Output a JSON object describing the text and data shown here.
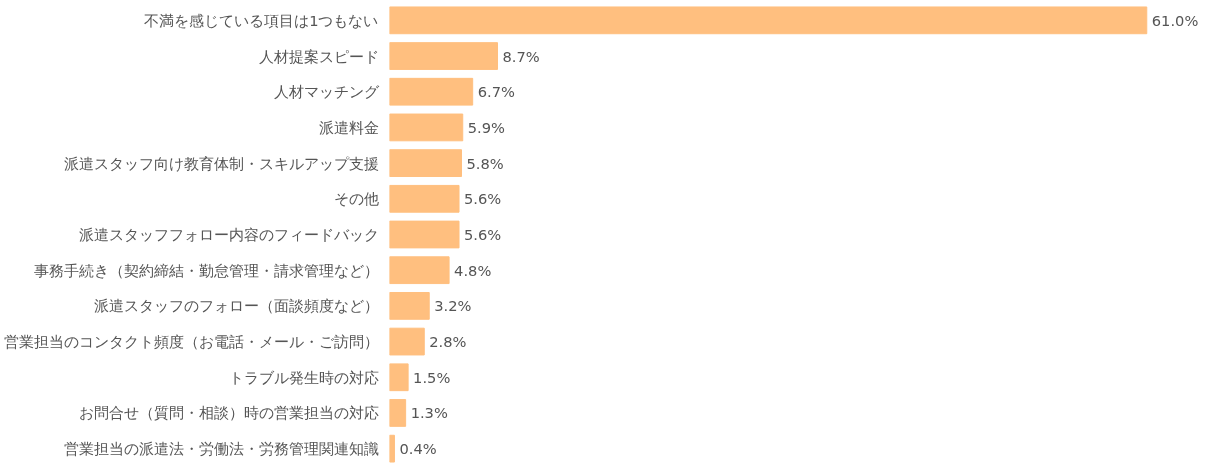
{
  "chart_data": {
    "type": "bar",
    "orientation": "horizontal",
    "categories": [
      "不満を感じている項目は1つもない",
      "人材提案スピード",
      "人材マッチング",
      "派遣料金",
      "派遣スタッフ向け教育体制・スキルアップ支援",
      "その他",
      "派遣スタッフフォロー内容のフィードバック",
      "事務手続き（契約締結・勤怠管理・請求管理など）",
      "派遣スタッフのフォロー（面談頻度など）",
      "営業担当のコンタクト頻度（お電話・メール・ご訪問）",
      "トラブル発生時の対応",
      "お問合せ（質問・相談）時の営業担当の対応",
      "営業担当の派遣法・労働法・労務管理関連知識"
    ],
    "values": [
      61.0,
      8.7,
      6.7,
      5.9,
      5.8,
      5.6,
      5.6,
      4.8,
      3.2,
      2.8,
      1.5,
      1.3,
      0.4
    ],
    "value_labels": [
      "61.0%",
      "8.7%",
      "6.7%",
      "5.9%",
      "5.8%",
      "5.6%",
      "5.6%",
      "4.8%",
      "3.2%",
      "2.8%",
      "1.5%",
      "1.3%",
      "0.4%"
    ],
    "color": "#ffbf7f",
    "tick_labels": "y",
    "grid": false
  }
}
